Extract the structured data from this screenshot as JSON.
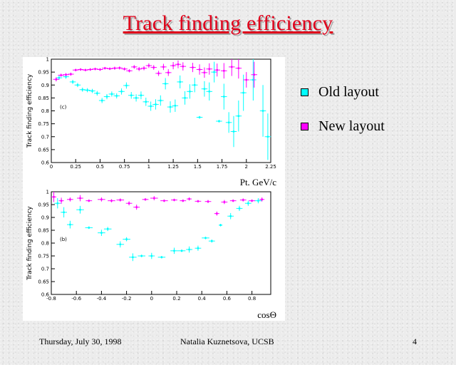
{
  "slide": {
    "title": "Track finding efficiency",
    "footer_date": "Thursday, July 30, 1998",
    "footer_author": "Natalia Kuznetsova, UCSB",
    "page_number": "4"
  },
  "legend": {
    "old_label": "Old layout",
    "new_label": "New layout",
    "old_color": "#00ffff",
    "new_color": "#ff00ff"
  },
  "chart_data": [
    {
      "type": "scatter",
      "panel_label": "(c)",
      "xlabel": "Pt, GeV/c",
      "ylabel": "Track finding efficiency",
      "xlim": [
        0,
        2.25
      ],
      "ylim": [
        0.6,
        1.0
      ],
      "xticks": [
        "0",
        "0.25",
        "0.5",
        "0.75",
        "1",
        "1.25",
        "1.5",
        "1.75",
        "2",
        "2.25"
      ],
      "yticks": [
        "0.6",
        "0.65",
        "0.7",
        "0.75",
        "0.8",
        "0.85",
        "0.9",
        "0.95",
        "1"
      ],
      "series": [
        {
          "name": "Old layout",
          "color": "#00ffff",
          "points": [
            {
              "x": 0.08,
              "y": 0.928,
              "err": 0.008
            },
            {
              "x": 0.15,
              "y": 0.932,
              "err": 0.008
            },
            {
              "x": 0.22,
              "y": 0.912,
              "err": 0.008
            },
            {
              "x": 0.27,
              "y": 0.9,
              "err": 0.008
            },
            {
              "x": 0.32,
              "y": 0.882,
              "err": 0.008
            },
            {
              "x": 0.37,
              "y": 0.88,
              "err": 0.008
            },
            {
              "x": 0.42,
              "y": 0.877,
              "err": 0.008
            },
            {
              "x": 0.47,
              "y": 0.868,
              "err": 0.009
            },
            {
              "x": 0.52,
              "y": 0.84,
              "err": 0.01
            },
            {
              "x": 0.57,
              "y": 0.855,
              "err": 0.01
            },
            {
              "x": 0.62,
              "y": 0.865,
              "err": 0.01
            },
            {
              "x": 0.67,
              "y": 0.858,
              "err": 0.01
            },
            {
              "x": 0.72,
              "y": 0.875,
              "err": 0.012
            },
            {
              "x": 0.77,
              "y": 0.898,
              "err": 0.012
            },
            {
              "x": 0.82,
              "y": 0.86,
              "err": 0.013
            },
            {
              "x": 0.87,
              "y": 0.85,
              "err": 0.014
            },
            {
              "x": 0.92,
              "y": 0.86,
              "err": 0.015
            },
            {
              "x": 0.97,
              "y": 0.835,
              "err": 0.016
            },
            {
              "x": 1.02,
              "y": 0.818,
              "err": 0.018
            },
            {
              "x": 1.07,
              "y": 0.825,
              "err": 0.02
            },
            {
              "x": 1.12,
              "y": 0.84,
              "err": 0.02
            },
            {
              "x": 1.17,
              "y": 0.905,
              "err": 0.022
            },
            {
              "x": 1.22,
              "y": 0.815,
              "err": 0.022
            },
            {
              "x": 1.27,
              "y": 0.82,
              "err": 0.024
            },
            {
              "x": 1.32,
              "y": 0.912,
              "err": 0.025
            },
            {
              "x": 1.37,
              "y": 0.85,
              "err": 0.026
            },
            {
              "x": 1.42,
              "y": 0.875,
              "err": 0.028
            },
            {
              "x": 1.47,
              "y": 0.9,
              "err": 0.028
            },
            {
              "x": 1.52,
              "y": 0.775,
              "err": 0.005
            },
            {
              "x": 1.57,
              "y": 0.885,
              "err": 0.03
            },
            {
              "x": 1.62,
              "y": 0.875,
              "err": 0.035
            },
            {
              "x": 1.67,
              "y": 0.95,
              "err": 0.04
            },
            {
              "x": 1.72,
              "y": 0.76,
              "err": 0.005
            },
            {
              "x": 1.77,
              "y": 0.855,
              "err": 0.05
            },
            {
              "x": 1.82,
              "y": 0.755,
              "err": 0.04
            },
            {
              "x": 1.87,
              "y": 0.72,
              "err": 0.06
            },
            {
              "x": 1.92,
              "y": 0.78,
              "err": 0.06
            },
            {
              "x": 1.97,
              "y": 0.87,
              "err": 0.07
            },
            {
              "x": 2.07,
              "y": 0.92,
              "err": 0.08
            },
            {
              "x": 2.17,
              "y": 0.8,
              "err": 0.1
            },
            {
              "x": 2.22,
              "y": 0.7,
              "err": 0.09
            }
          ]
        },
        {
          "name": "New layout",
          "color": "#ff00ff",
          "points": [
            {
              "x": 0.05,
              "y": 0.922,
              "err": 0.008
            },
            {
              "x": 0.1,
              "y": 0.938,
              "err": 0.006
            },
            {
              "x": 0.15,
              "y": 0.94,
              "err": 0.006
            },
            {
              "x": 0.2,
              "y": 0.942,
              "err": 0.006
            },
            {
              "x": 0.25,
              "y": 0.958,
              "err": 0.005
            },
            {
              "x": 0.3,
              "y": 0.96,
              "err": 0.005
            },
            {
              "x": 0.35,
              "y": 0.958,
              "err": 0.005
            },
            {
              "x": 0.4,
              "y": 0.96,
              "err": 0.005
            },
            {
              "x": 0.45,
              "y": 0.962,
              "err": 0.005
            },
            {
              "x": 0.5,
              "y": 0.96,
              "err": 0.005
            },
            {
              "x": 0.55,
              "y": 0.965,
              "err": 0.005
            },
            {
              "x": 0.6,
              "y": 0.963,
              "err": 0.005
            },
            {
              "x": 0.65,
              "y": 0.965,
              "err": 0.006
            },
            {
              "x": 0.7,
              "y": 0.966,
              "err": 0.006
            },
            {
              "x": 0.75,
              "y": 0.962,
              "err": 0.006
            },
            {
              "x": 0.8,
              "y": 0.955,
              "err": 0.006
            },
            {
              "x": 0.85,
              "y": 0.97,
              "err": 0.007
            },
            {
              "x": 0.9,
              "y": 0.962,
              "err": 0.008
            },
            {
              "x": 0.95,
              "y": 0.965,
              "err": 0.008
            },
            {
              "x": 1.0,
              "y": 0.975,
              "err": 0.009
            },
            {
              "x": 1.05,
              "y": 0.968,
              "err": 0.009
            },
            {
              "x": 1.1,
              "y": 0.945,
              "err": 0.01
            },
            {
              "x": 1.15,
              "y": 0.97,
              "err": 0.012
            },
            {
              "x": 1.2,
              "y": 0.948,
              "err": 0.013
            },
            {
              "x": 1.25,
              "y": 0.975,
              "err": 0.014
            },
            {
              "x": 1.3,
              "y": 0.98,
              "err": 0.015
            },
            {
              "x": 1.35,
              "y": 0.972,
              "err": 0.016
            },
            {
              "x": 1.45,
              "y": 0.968,
              "err": 0.018
            },
            {
              "x": 1.52,
              "y": 0.96,
              "err": 0.02
            },
            {
              "x": 1.57,
              "y": 0.948,
              "err": 0.02
            },
            {
              "x": 1.62,
              "y": 0.962,
              "err": 0.022
            },
            {
              "x": 1.7,
              "y": 0.958,
              "err": 0.025
            },
            {
              "x": 1.77,
              "y": 0.955,
              "err": 0.03
            },
            {
              "x": 1.85,
              "y": 0.97,
              "err": 0.035
            },
            {
              "x": 1.92,
              "y": 0.965,
              "err": 0.04
            },
            {
              "x": 2.0,
              "y": 0.92,
              "err": 0.03
            },
            {
              "x": 2.08,
              "y": 0.94,
              "err": 0.05
            }
          ]
        }
      ]
    },
    {
      "type": "scatter",
      "panel_label": "(b)",
      "xlabel": "cosΘ",
      "ylabel": "Track finding efficiency",
      "xlim": [
        -0.8,
        0.95
      ],
      "ylim": [
        0.6,
        1.0
      ],
      "xticks": [
        "-0.8",
        "-0.6",
        "-0.4",
        "-0.2",
        "0",
        "0.2",
        "0.4",
        "0.6",
        "0.8"
      ],
      "yticks": [
        "0.6",
        "0.65",
        "0.7",
        "0.75",
        "0.8",
        "0.85",
        "0.9",
        "0.95",
        "1"
      ],
      "series": [
        {
          "name": "Old layout",
          "color": "#00ffff",
          "points": [
            {
              "x": -0.75,
              "y": 0.955,
              "err": 0.02,
              "xerr": 0.025
            },
            {
              "x": -0.7,
              "y": 0.92,
              "err": 0.02,
              "xerr": 0.025
            },
            {
              "x": -0.65,
              "y": 0.872,
              "err": 0.015,
              "xerr": 0.025
            },
            {
              "x": -0.57,
              "y": 0.93,
              "err": 0.015,
              "xerr": 0.03
            },
            {
              "x": -0.5,
              "y": 0.86,
              "err": 0.005,
              "xerr": 0.03
            },
            {
              "x": -0.4,
              "y": 0.84,
              "err": 0.012,
              "xerr": 0.03
            },
            {
              "x": -0.35,
              "y": 0.855,
              "err": 0.008,
              "xerr": 0.03
            },
            {
              "x": -0.25,
              "y": 0.795,
              "err": 0.012,
              "xerr": 0.03
            },
            {
              "x": -0.2,
              "y": 0.815,
              "err": 0.008,
              "xerr": 0.03
            },
            {
              "x": -0.15,
              "y": 0.745,
              "err": 0.015,
              "xerr": 0.03
            },
            {
              "x": -0.08,
              "y": 0.75,
              "err": 0.005,
              "xerr": 0.03
            },
            {
              "x": 0.0,
              "y": 0.75,
              "err": 0.012,
              "xerr": 0.025
            },
            {
              "x": 0.08,
              "y": 0.745,
              "err": 0.005,
              "xerr": 0.03
            },
            {
              "x": 0.18,
              "y": 0.77,
              "err": 0.012,
              "xerr": 0.03
            },
            {
              "x": 0.24,
              "y": 0.77,
              "err": 0.005,
              "xerr": 0.03
            },
            {
              "x": 0.3,
              "y": 0.775,
              "err": 0.012,
              "xerr": 0.025
            },
            {
              "x": 0.37,
              "y": 0.78,
              "err": 0.01,
              "xerr": 0.025
            },
            {
              "x": 0.43,
              "y": 0.82,
              "err": 0.005,
              "xerr": 0.03
            },
            {
              "x": 0.48,
              "y": 0.808,
              "err": 0.006,
              "xerr": 0.025
            },
            {
              "x": 0.55,
              "y": 0.87,
              "err": 0.005,
              "xerr": 0.015
            },
            {
              "x": 0.63,
              "y": 0.905,
              "err": 0.012,
              "xerr": 0.025
            },
            {
              "x": 0.7,
              "y": 0.935,
              "err": 0.01,
              "xerr": 0.025
            },
            {
              "x": 0.77,
              "y": 0.955,
              "err": 0.01,
              "xerr": 0.025
            },
            {
              "x": 0.85,
              "y": 0.965,
              "err": 0.01,
              "xerr": 0.03
            }
          ]
        },
        {
          "name": "New layout",
          "color": "#ff00ff",
          "points": [
            {
              "x": -0.78,
              "y": 0.98,
              "err": 0.02,
              "xerr": 0.02
            },
            {
              "x": -0.72,
              "y": 0.965,
              "err": 0.012,
              "xerr": 0.02
            },
            {
              "x": -0.65,
              "y": 0.97,
              "err": 0.008,
              "xerr": 0.025
            },
            {
              "x": -0.57,
              "y": 0.975,
              "err": 0.012,
              "xerr": 0.025
            },
            {
              "x": -0.5,
              "y": 0.965,
              "err": 0.005,
              "xerr": 0.025
            },
            {
              "x": -0.4,
              "y": 0.97,
              "err": 0.008,
              "xerr": 0.03
            },
            {
              "x": -0.32,
              "y": 0.965,
              "err": 0.006,
              "xerr": 0.03
            },
            {
              "x": -0.25,
              "y": 0.968,
              "err": 0.006,
              "xerr": 0.03
            },
            {
              "x": -0.18,
              "y": 0.955,
              "err": 0.008,
              "xerr": 0.025
            },
            {
              "x": -0.12,
              "y": 0.94,
              "err": 0.01,
              "xerr": 0.025
            },
            {
              "x": -0.05,
              "y": 0.97,
              "err": 0.005,
              "xerr": 0.025
            },
            {
              "x": 0.02,
              "y": 0.975,
              "err": 0.008,
              "xerr": 0.03
            },
            {
              "x": 0.1,
              "y": 0.965,
              "err": 0.005,
              "xerr": 0.03
            },
            {
              "x": 0.18,
              "y": 0.968,
              "err": 0.005,
              "xerr": 0.025
            },
            {
              "x": 0.25,
              "y": 0.965,
              "err": 0.005,
              "xerr": 0.025
            },
            {
              "x": 0.3,
              "y": 0.972,
              "err": 0.006,
              "xerr": 0.02
            },
            {
              "x": 0.37,
              "y": 0.963,
              "err": 0.005,
              "xerr": 0.025
            },
            {
              "x": 0.45,
              "y": 0.962,
              "err": 0.006,
              "xerr": 0.025
            },
            {
              "x": 0.52,
              "y": 0.915,
              "err": 0.008,
              "xerr": 0.02
            },
            {
              "x": 0.58,
              "y": 0.96,
              "err": 0.008,
              "xerr": 0.025
            },
            {
              "x": 0.65,
              "y": 0.965,
              "err": 0.005,
              "xerr": 0.025
            },
            {
              "x": 0.73,
              "y": 0.968,
              "err": 0.006,
              "xerr": 0.025
            },
            {
              "x": 0.8,
              "y": 0.965,
              "err": 0.005,
              "xerr": 0.025
            },
            {
              "x": 0.88,
              "y": 0.97,
              "err": 0.008,
              "xerr": 0.02
            }
          ]
        }
      ]
    }
  ]
}
